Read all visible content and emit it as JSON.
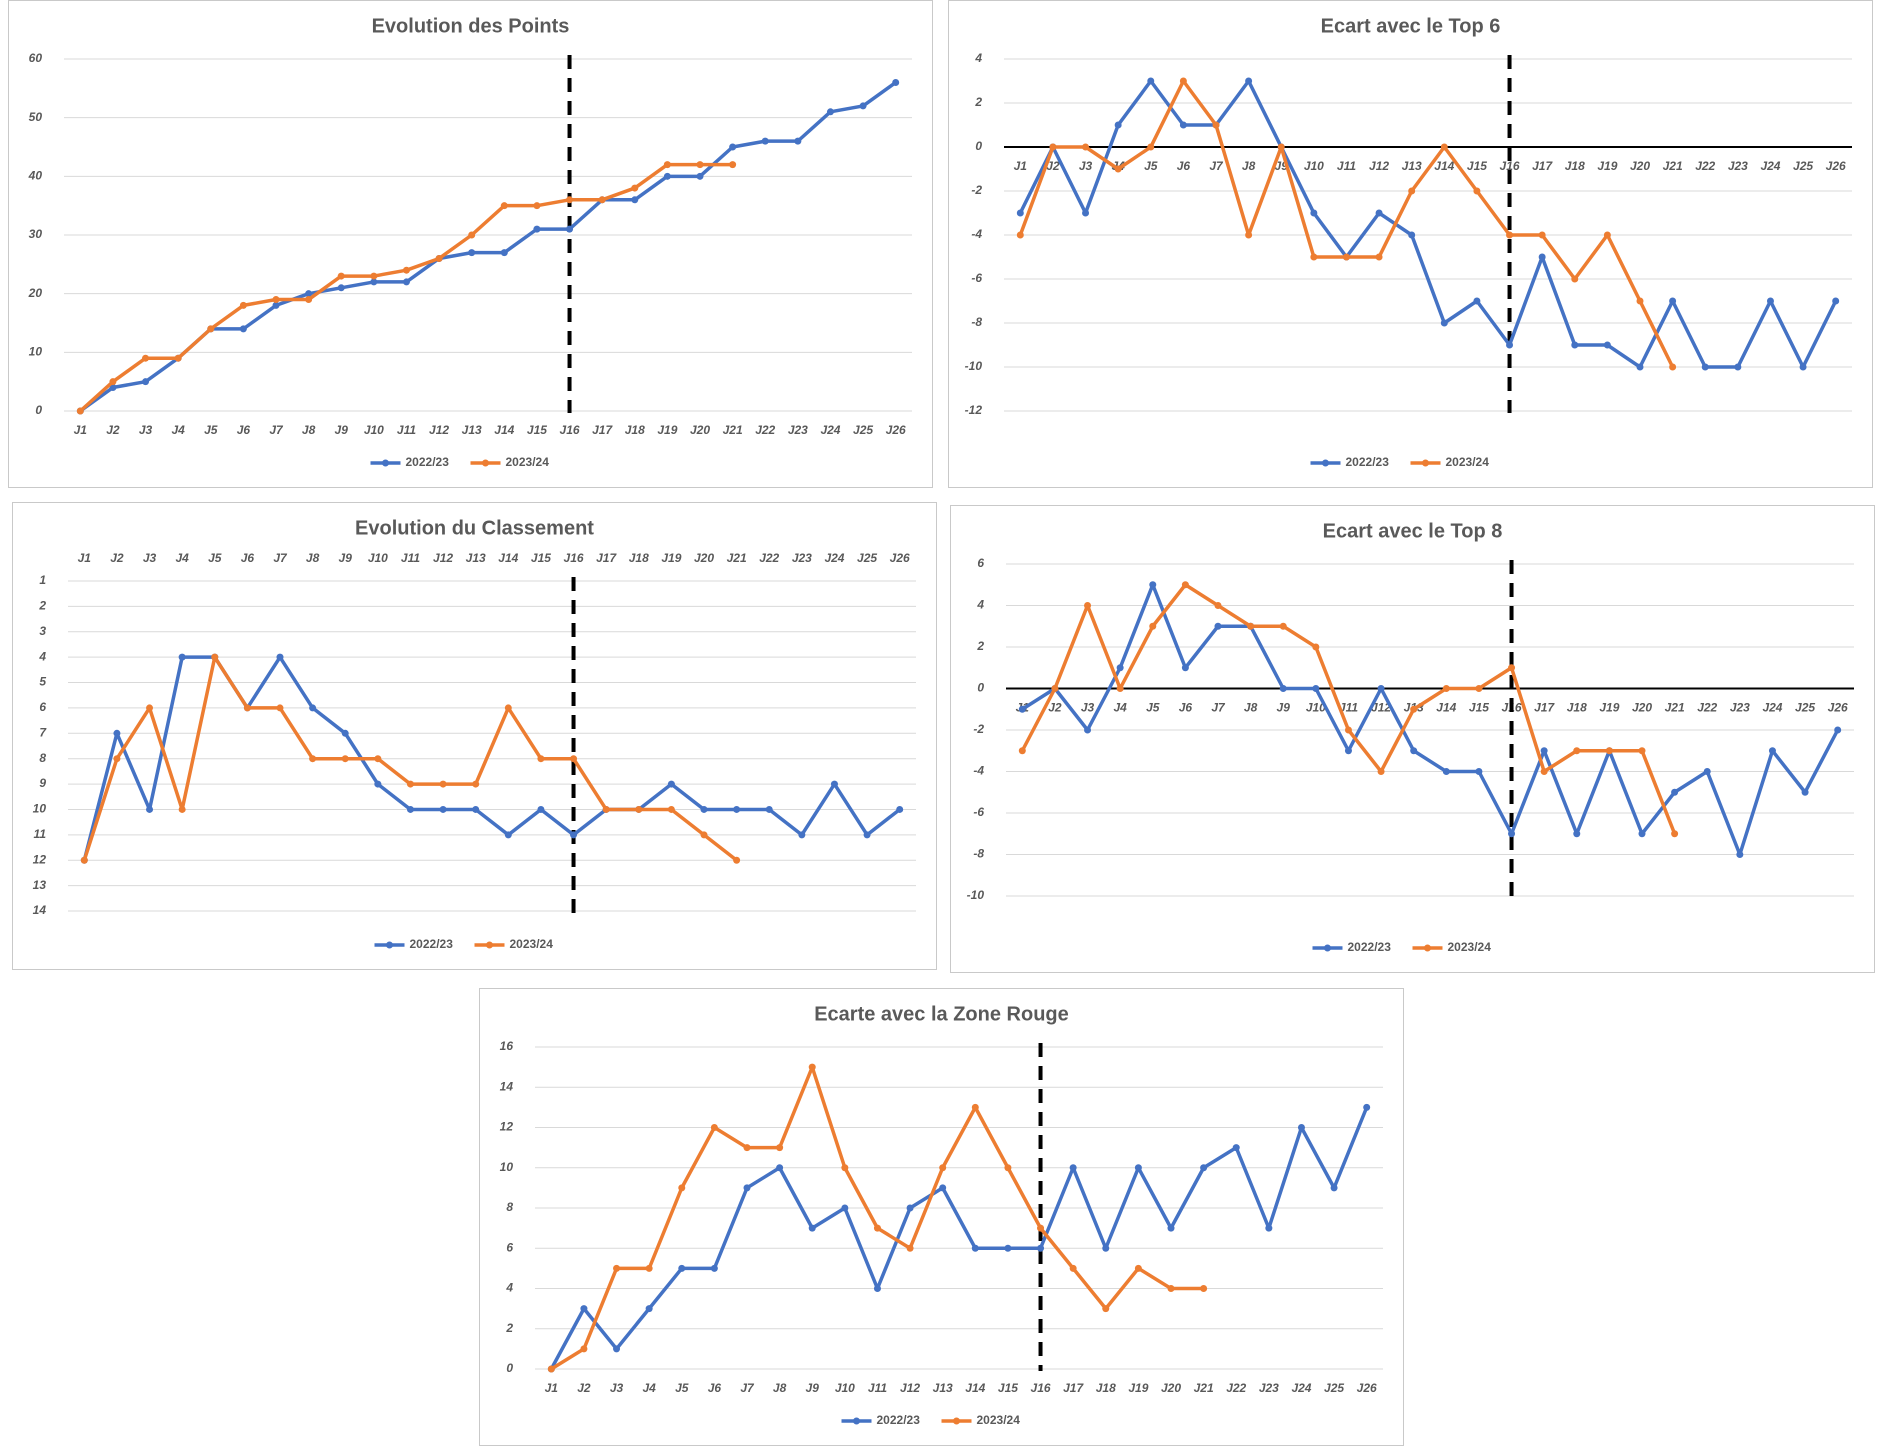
{
  "chart_data": [
    {
      "type": "line",
      "title": "Evolution des Points",
      "categories": [
        "J1",
        "J2",
        "J3",
        "J4",
        "J5",
        "J6",
        "J7",
        "J8",
        "J9",
        "J10",
        "J11",
        "J12",
        "J13",
        "J14",
        "J15",
        "J16",
        "J17",
        "J18",
        "J19",
        "J20",
        "J21",
        "J22",
        "J23",
        "J24",
        "J25",
        "J26"
      ],
      "series": [
        {
          "name": "2022/23",
          "color": "#4472c4",
          "values": [
            0,
            4,
            5,
            9,
            14,
            14,
            18,
            20,
            21,
            22,
            22,
            26,
            27,
            27,
            31,
            31,
            36,
            36,
            40,
            40,
            45,
            46,
            46,
            51,
            52,
            56
          ]
        },
        {
          "name": "2023/24",
          "color": "#ed7d31",
          "values": [
            0,
            5,
            9,
            9,
            14,
            18,
            19,
            19,
            23,
            23,
            24,
            26,
            30,
            35,
            35,
            36,
            36,
            38,
            42,
            42,
            42,
            null,
            null,
            null,
            null,
            null
          ]
        }
      ],
      "ylim": [
        0,
        60
      ],
      "yticks": [
        0,
        10,
        20,
        30,
        40,
        50,
        60
      ],
      "grid": true,
      "x_axis_position": "bottom",
      "reference_line": {
        "category": "J16",
        "style": "dashed"
      }
    },
    {
      "type": "line",
      "title": "Ecart avec le Top 6",
      "categories": [
        "J1",
        "J2",
        "J3",
        "J4",
        "J5",
        "J6",
        "J7",
        "J8",
        "J9",
        "J10",
        "J11",
        "J12",
        "J13",
        "J14",
        "J15",
        "J16",
        "J17",
        "J18",
        "J19",
        "J20",
        "J21",
        "J22",
        "J23",
        "J24",
        "J25",
        "J26"
      ],
      "series": [
        {
          "name": "2022/23",
          "color": "#4472c4",
          "values": [
            -3,
            0,
            -3,
            1,
            3,
            1,
            1,
            3,
            0,
            -3,
            -5,
            -3,
            -4,
            -8,
            -7,
            -9,
            -5,
            -9,
            -9,
            -10,
            -7,
            -10,
            -10,
            -7,
            -10,
            -7
          ]
        },
        {
          "name": "2023/24",
          "color": "#ed7d31",
          "values": [
            -4,
            0,
            0,
            -1,
            0,
            3,
            1,
            -4,
            0,
            -5,
            -5,
            -5,
            -2,
            0,
            -2,
            -4,
            -4,
            -6,
            -4,
            -7,
            -10,
            null,
            null,
            null,
            null,
            null
          ]
        }
      ],
      "ylim": [
        -12,
        4
      ],
      "yticks": [
        -12,
        -10,
        -8,
        -6,
        -4,
        -2,
        0,
        2,
        4
      ],
      "grid": true,
      "x_axis_position": "zero",
      "reference_line": {
        "category": "J16",
        "style": "dashed"
      }
    },
    {
      "type": "line",
      "title": "Evolution du Classement",
      "categories": [
        "J1",
        "J2",
        "J3",
        "J4",
        "J5",
        "J6",
        "J7",
        "J8",
        "J9",
        "J10",
        "J11",
        "J12",
        "J13",
        "J14",
        "J15",
        "J16",
        "J17",
        "J18",
        "J19",
        "J20",
        "J21",
        "J22",
        "J23",
        "J24",
        "J25",
        "J26"
      ],
      "series": [
        {
          "name": "2022/23",
          "color": "#4472c4",
          "values": [
            12,
            7,
            10,
            4,
            4,
            6,
            4,
            6,
            7,
            9,
            10,
            10,
            10,
            11,
            10,
            11,
            10,
            10,
            9,
            10,
            10,
            10,
            11,
            9,
            11,
            10
          ]
        },
        {
          "name": "2023/24",
          "color": "#ed7d31",
          "values": [
            12,
            8,
            6,
            10,
            4,
            6,
            6,
            8,
            8,
            8,
            9,
            9,
            9,
            6,
            8,
            8,
            10,
            10,
            10,
            11,
            12,
            null,
            null,
            null,
            null,
            null
          ]
        }
      ],
      "ylim": [
        1,
        14
      ],
      "yticks": [
        1,
        2,
        3,
        4,
        5,
        6,
        7,
        8,
        9,
        10,
        11,
        12,
        13,
        14
      ],
      "reversed": true,
      "grid": true,
      "x_axis_position": "top",
      "reference_line": {
        "category": "J16",
        "style": "dashed"
      }
    },
    {
      "type": "line",
      "title": "Ecart avec le Top 8",
      "categories": [
        "J1",
        "J2",
        "J3",
        "J4",
        "J5",
        "J6",
        "J7",
        "J8",
        "J9",
        "J10",
        "J11",
        "J12",
        "J13",
        "J14",
        "J15",
        "J16",
        "J17",
        "J18",
        "J19",
        "J20",
        "J21",
        "J22",
        "J23",
        "J24",
        "J25",
        "J26"
      ],
      "series": [
        {
          "name": "2022/23",
          "color": "#4472c4",
          "values": [
            -1,
            0,
            -2,
            1,
            5,
            1,
            3,
            3,
            0,
            0,
            -3,
            0,
            -3,
            -4,
            -4,
            -7,
            -3,
            -7,
            -3,
            -7,
            -5,
            -4,
            -8,
            -3,
            -5,
            -2
          ]
        },
        {
          "name": "2023/24",
          "color": "#ed7d31",
          "values": [
            -3,
            0,
            4,
            0,
            3,
            5,
            4,
            3,
            3,
            2,
            -2,
            -4,
            -1,
            0,
            0,
            1,
            -4,
            -3,
            -3,
            -3,
            -7,
            null,
            null,
            null,
            null,
            null
          ]
        }
      ],
      "ylim": [
        -10,
        6
      ],
      "yticks": [
        -10,
        -8,
        -6,
        -4,
        -2,
        0,
        2,
        4,
        6
      ],
      "grid": true,
      "x_axis_position": "zero",
      "reference_line": {
        "category": "J16",
        "style": "dashed"
      }
    },
    {
      "type": "line",
      "title": "Ecarte avec la Zone Rouge",
      "categories": [
        "J1",
        "J2",
        "J3",
        "J4",
        "J5",
        "J6",
        "J7",
        "J8",
        "J9",
        "J10",
        "J11",
        "J12",
        "J13",
        "J14",
        "J15",
        "J16",
        "J17",
        "J18",
        "J19",
        "J20",
        "J21",
        "J22",
        "J23",
        "J24",
        "J25",
        "J26"
      ],
      "series": [
        {
          "name": "2022/23",
          "color": "#4472c4",
          "values": [
            0,
            3,
            1,
            3,
            5,
            5,
            9,
            10,
            7,
            8,
            4,
            8,
            9,
            6,
            6,
            6,
            10,
            6,
            10,
            7,
            10,
            11,
            7,
            12,
            9,
            13
          ]
        },
        {
          "name": "2023/24",
          "color": "#ed7d31",
          "values": [
            0,
            1,
            5,
            5,
            9,
            12,
            11,
            11,
            15,
            10,
            7,
            6,
            10,
            13,
            10,
            7,
            5,
            3,
            5,
            4,
            4,
            null,
            null,
            null,
            null,
            null
          ]
        }
      ],
      "ylim": [
        0,
        16
      ],
      "yticks": [
        0,
        2,
        4,
        6,
        8,
        10,
        12,
        14,
        16
      ],
      "grid": true,
      "x_axis_position": "bottom",
      "reference_line": {
        "category": "J16",
        "style": "dashed"
      }
    }
  ]
}
